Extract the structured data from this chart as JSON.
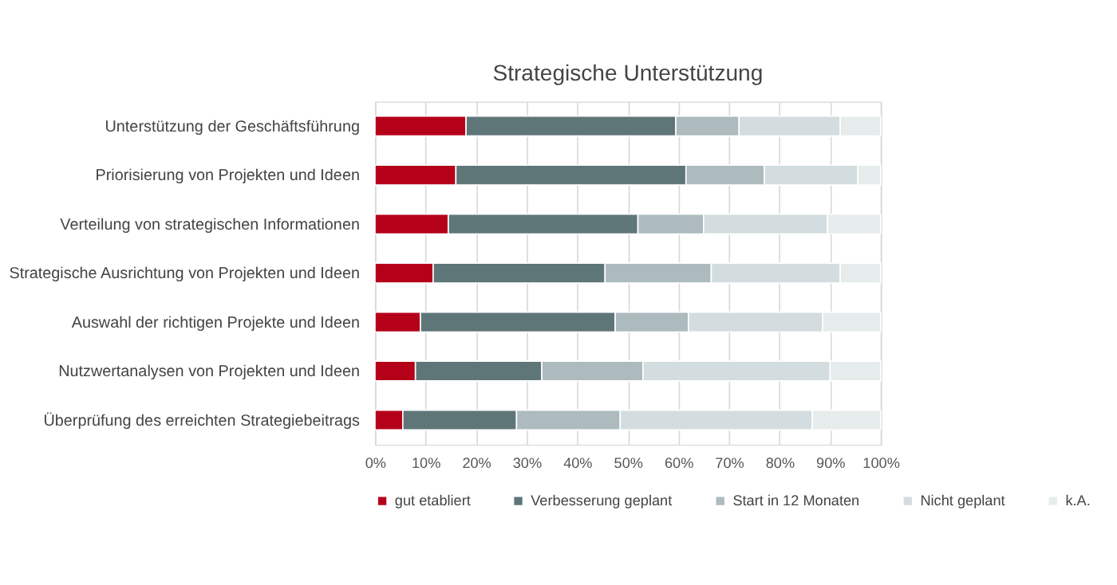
{
  "chart_data": {
    "type": "bar",
    "orientation": "horizontal",
    "stacked": true,
    "title": "Strategische Unterstützung",
    "categories": [
      "Unterstützung der Geschäftsführung",
      "Priorisierung von Projekten und Ideen",
      "Verteilung von strategischen Informationen",
      "Strategische Ausrichtung von Projekten und Ideen",
      "Auswahl der richtigen Projekte und Ideen",
      "Nutzwertanalysen von Projekten und Ideen",
      "Überprüfung des erreichten Strategiebeitrags"
    ],
    "series": [
      {
        "name": "gut etabliert",
        "color": "#b5001a",
        "values": [
          18,
          16,
          14.5,
          11.5,
          9,
          8,
          5.5
        ]
      },
      {
        "name": "Verbesserung geplant",
        "color": "#5f7679",
        "values": [
          41.5,
          45.5,
          37.5,
          34,
          38.5,
          25,
          22.5
        ]
      },
      {
        "name": "Start in 12 Monaten",
        "color": "#adbbbe",
        "values": [
          12.5,
          15.5,
          13,
          21,
          14.5,
          20,
          20.5
        ]
      },
      {
        "name": "Nicht geplant",
        "color": "#d3dcdf",
        "values": [
          20,
          18.5,
          24.5,
          25.5,
          26.5,
          37,
          38
        ]
      },
      {
        "name": "k.A.",
        "color": "#e6ecec",
        "values": [
          8,
          4.5,
          10.5,
          8,
          11.5,
          10,
          13.5
        ]
      }
    ],
    "xlim": [
      0,
      100
    ],
    "xticks": [
      {
        "value": 0,
        "label": "0%"
      },
      {
        "value": 10,
        "label": "10%"
      },
      {
        "value": 20,
        "label": "20%"
      },
      {
        "value": 30,
        "label": "30%"
      },
      {
        "value": 40,
        "label": "40%"
      },
      {
        "value": 50,
        "label": "50%"
      },
      {
        "value": 60,
        "label": "60%"
      },
      {
        "value": 70,
        "label": "70%"
      },
      {
        "value": 80,
        "label": "80%"
      },
      {
        "value": 90,
        "label": "90%"
      },
      {
        "value": 100,
        "label": "100%"
      }
    ],
    "grid": "x",
    "legend": "bottom"
  }
}
